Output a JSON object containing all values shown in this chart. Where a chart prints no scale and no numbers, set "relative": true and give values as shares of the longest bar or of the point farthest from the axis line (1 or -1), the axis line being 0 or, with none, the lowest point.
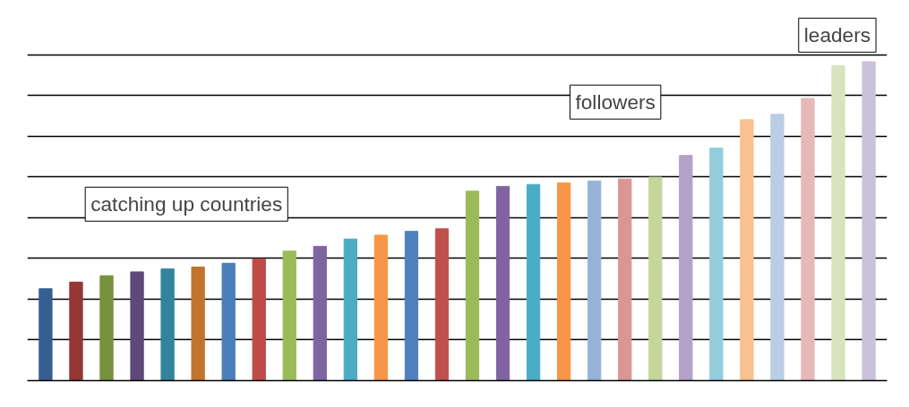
{
  "chart_data": {
    "type": "bar",
    "relative": true,
    "grid": "y",
    "categories": [
      null,
      null,
      null,
      null,
      null,
      null,
      null,
      null,
      null,
      null,
      null,
      null,
      null,
      null,
      null,
      null,
      null,
      null,
      null,
      null,
      null,
      null,
      null,
      null,
      null,
      null,
      null,
      null
    ],
    "values": [
      0.288,
      0.309,
      0.329,
      0.341,
      0.35,
      0.356,
      0.368,
      0.382,
      0.406,
      0.421,
      0.444,
      0.456,
      0.468,
      0.476,
      0.594,
      0.609,
      0.615,
      0.62,
      0.626,
      0.632,
      0.638,
      0.706,
      0.729,
      0.818,
      0.835,
      0.885,
      0.988,
      1
    ],
    "colors": [
      "#365f91",
      "#953735",
      "#76923c",
      "#5f497a",
      "#31849b",
      "#c0742f",
      "#4a7ebb",
      "#be4b48",
      "#9bbb59",
      "#8064a2",
      "#4bacc6",
      "#f79646",
      "#4f81bd",
      "#c0504d",
      "#9bbb59",
      "#8064a2",
      "#4bacc6",
      "#f79646",
      "#95b3d7",
      "#d99694",
      "#c3d69b",
      "#b3a2c7",
      "#93cddd",
      "#fac090",
      "#b9cde5",
      "#e6b9b8",
      "#d7e4bd",
      "#ccc1da"
    ],
    "annotations": [
      "catching up countries",
      "followers",
      "leaders"
    ]
  }
}
